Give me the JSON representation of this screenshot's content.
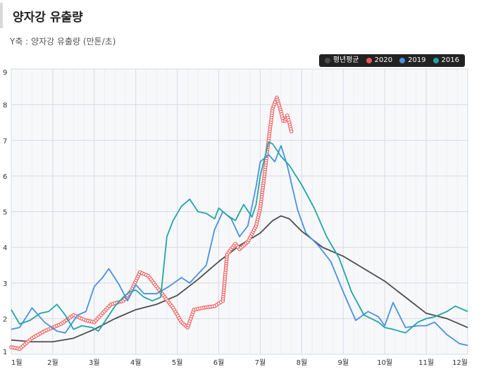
{
  "page": {
    "title": "양자강 유출량",
    "subtitle": "Y축 : 양자강 유출량 (만톤/초)"
  },
  "chart_data": {
    "type": "line",
    "title": "양자강 유출량",
    "ylabel": "Y축 : 양자강 유출량 (만톤/초)",
    "xlabel": "",
    "ylim": [
      1,
      9
    ],
    "xlim": [
      1,
      12
    ],
    "grid": true,
    "legend_position": "top-right",
    "x_ticks": [
      "1월",
      "2월",
      "3월",
      "4월",
      "5월",
      "6월",
      "7월",
      "8월",
      "9월",
      "10월",
      "11월",
      "12월"
    ],
    "y_ticks": [
      "1",
      "2",
      "3",
      "4",
      "5",
      "6",
      "7",
      "8",
      "9"
    ],
    "series": [
      {
        "name": "평년평균",
        "color": "#4d4d4d",
        "markers": false,
        "points": [
          [
            1,
            1.4
          ],
          [
            1.5,
            1.35
          ],
          [
            2,
            1.35
          ],
          [
            2.5,
            1.45
          ],
          [
            3,
            1.7
          ],
          [
            3.5,
            2.0
          ],
          [
            4,
            2.25
          ],
          [
            4.5,
            2.4
          ],
          [
            5,
            2.65
          ],
          [
            5.5,
            3.1
          ],
          [
            6,
            3.6
          ],
          [
            6.5,
            4.05
          ],
          [
            7,
            4.4
          ],
          [
            7.3,
            4.75
          ],
          [
            7.5,
            4.88
          ],
          [
            7.7,
            4.8
          ],
          [
            8,
            4.45
          ],
          [
            8.5,
            4.0
          ],
          [
            9,
            3.75
          ],
          [
            9.5,
            3.4
          ],
          [
            10,
            3.05
          ],
          [
            10.5,
            2.6
          ],
          [
            11,
            2.15
          ],
          [
            11.5,
            2.0
          ],
          [
            12,
            1.75
          ]
        ]
      },
      {
        "name": "2020",
        "color": "#ee5555",
        "markers": true,
        "points": [
          [
            1,
            1.2
          ],
          [
            1.2,
            1.15
          ],
          [
            1.5,
            1.45
          ],
          [
            1.8,
            1.65
          ],
          [
            2,
            1.75
          ],
          [
            2.2,
            1.85
          ],
          [
            2.5,
            2.1
          ],
          [
            2.8,
            1.95
          ],
          [
            3,
            1.9
          ],
          [
            3.2,
            2.15
          ],
          [
            3.4,
            2.4
          ],
          [
            3.7,
            2.5
          ],
          [
            3.9,
            2.8
          ],
          [
            4.1,
            3.3
          ],
          [
            4.3,
            3.2
          ],
          [
            4.6,
            2.75
          ],
          [
            4.9,
            2.3
          ],
          [
            5.1,
            1.9
          ],
          [
            5.25,
            1.75
          ],
          [
            5.4,
            2.25
          ],
          [
            5.6,
            2.3
          ],
          [
            5.9,
            2.35
          ],
          [
            6.1,
            2.5
          ],
          [
            6.2,
            3.8
          ],
          [
            6.4,
            4.1
          ],
          [
            6.5,
            3.95
          ],
          [
            6.7,
            4.15
          ],
          [
            6.9,
            4.6
          ],
          [
            7.0,
            5.1
          ],
          [
            7.1,
            6.0
          ],
          [
            7.2,
            7.0
          ],
          [
            7.3,
            7.9
          ],
          [
            7.4,
            8.2
          ],
          [
            7.5,
            7.8
          ],
          [
            7.55,
            7.55
          ],
          [
            7.6,
            7.55
          ],
          [
            7.65,
            7.7
          ],
          [
            7.7,
            7.5
          ],
          [
            7.75,
            7.25
          ]
        ]
      },
      {
        "name": "2019",
        "color": "#4a90e2",
        "markers": false,
        "points": [
          [
            1,
            1.7
          ],
          [
            1.2,
            1.75
          ],
          [
            1.5,
            2.3
          ],
          [
            1.8,
            1.9
          ],
          [
            2.1,
            1.65
          ],
          [
            2.3,
            1.6
          ],
          [
            2.6,
            2.1
          ],
          [
            2.8,
            2.2
          ],
          [
            3,
            2.9
          ],
          [
            3.2,
            3.15
          ],
          [
            3.35,
            3.4
          ],
          [
            3.6,
            2.95
          ],
          [
            3.8,
            2.5
          ],
          [
            4,
            2.95
          ],
          [
            4.2,
            2.7
          ],
          [
            4.5,
            2.7
          ],
          [
            4.8,
            2.9
          ],
          [
            5.1,
            3.15
          ],
          [
            5.3,
            3.0
          ],
          [
            5.7,
            3.5
          ],
          [
            5.9,
            4.5
          ],
          [
            6.1,
            5.0
          ],
          [
            6.3,
            4.8
          ],
          [
            6.5,
            4.3
          ],
          [
            6.7,
            4.6
          ],
          [
            6.9,
            5.7
          ],
          [
            7.0,
            6.4
          ],
          [
            7.2,
            6.6
          ],
          [
            7.35,
            6.4
          ],
          [
            7.5,
            6.85
          ],
          [
            7.65,
            6.3
          ],
          [
            7.9,
            5.05
          ],
          [
            8.1,
            4.4
          ],
          [
            8.4,
            4.05
          ],
          [
            8.7,
            3.6
          ],
          [
            9.0,
            2.75
          ],
          [
            9.3,
            1.95
          ],
          [
            9.6,
            2.2
          ],
          [
            9.85,
            2.05
          ],
          [
            10.0,
            1.8
          ],
          [
            10.2,
            2.45
          ],
          [
            10.5,
            1.75
          ],
          [
            10.8,
            1.8
          ],
          [
            11.0,
            1.8
          ],
          [
            11.2,
            1.9
          ],
          [
            11.5,
            1.55
          ],
          [
            11.8,
            1.3
          ],
          [
            12,
            1.25
          ]
        ]
      },
      {
        "name": "2016",
        "color": "#20a5a5",
        "markers": false,
        "points": [
          [
            1,
            2.25
          ],
          [
            1.2,
            1.85
          ],
          [
            1.45,
            1.95
          ],
          [
            1.7,
            2.15
          ],
          [
            1.9,
            2.2
          ],
          [
            2.1,
            2.4
          ],
          [
            2.3,
            2.1
          ],
          [
            2.5,
            1.7
          ],
          [
            2.7,
            1.8
          ],
          [
            2.95,
            1.75
          ],
          [
            3.1,
            1.65
          ],
          [
            3.3,
            2.0
          ],
          [
            3.5,
            2.35
          ],
          [
            3.7,
            2.6
          ],
          [
            3.85,
            2.75
          ],
          [
            4.0,
            2.8
          ],
          [
            4.2,
            2.6
          ],
          [
            4.4,
            2.5
          ],
          [
            4.6,
            2.6
          ],
          [
            4.75,
            4.3
          ],
          [
            4.9,
            4.75
          ],
          [
            5.1,
            5.15
          ],
          [
            5.3,
            5.35
          ],
          [
            5.5,
            5.0
          ],
          [
            5.7,
            4.95
          ],
          [
            5.9,
            4.8
          ],
          [
            6.0,
            5.1
          ],
          [
            6.2,
            4.9
          ],
          [
            6.4,
            4.75
          ],
          [
            6.6,
            5.2
          ],
          [
            6.8,
            4.85
          ],
          [
            6.9,
            5.2
          ],
          [
            7.0,
            6.0
          ],
          [
            7.2,
            6.95
          ],
          [
            7.3,
            6.9
          ],
          [
            7.5,
            6.55
          ],
          [
            7.7,
            6.3
          ],
          [
            8.0,
            5.75
          ],
          [
            8.3,
            5.1
          ],
          [
            8.6,
            4.3
          ],
          [
            8.9,
            3.7
          ],
          [
            9.2,
            2.75
          ],
          [
            9.5,
            2.1
          ],
          [
            9.85,
            1.9
          ],
          [
            10.0,
            1.75
          ],
          [
            10.2,
            1.7
          ],
          [
            10.5,
            1.6
          ],
          [
            10.8,
            1.9
          ],
          [
            11.0,
            2.0
          ],
          [
            11.2,
            2.05
          ],
          [
            11.5,
            2.2
          ],
          [
            11.7,
            2.35
          ],
          [
            12,
            2.2
          ]
        ]
      }
    ]
  }
}
